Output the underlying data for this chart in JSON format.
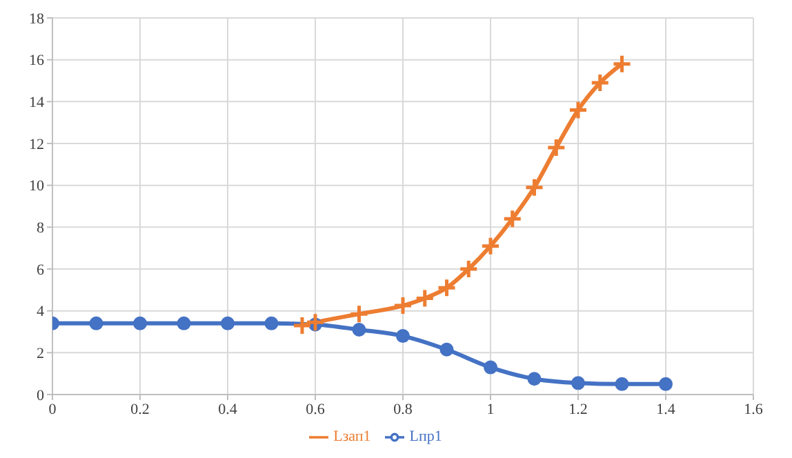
{
  "chart_data": {
    "type": "line",
    "xlim": [
      0,
      1.6
    ],
    "xticks": [
      0,
      0.2,
      0.4,
      0.6,
      0.8,
      1,
      1.2,
      1.4,
      1.6
    ],
    "ylim": [
      0,
      18
    ],
    "yticks": [
      0,
      2,
      4,
      6,
      8,
      10,
      12,
      14,
      16,
      18
    ],
    "grid": true,
    "legend": "bottom",
    "line_style": "solid",
    "series": [
      {
        "name": "Lпр1",
        "color": "#4472c4",
        "marker": "circle",
        "x": [
          0,
          0.1,
          0.2,
          0.3,
          0.4,
          0.5,
          0.6,
          0.7,
          0.8,
          0.9,
          1,
          1.1,
          1.2,
          1.3,
          1.4
        ],
        "values": [
          3.4,
          3.4,
          3.4,
          3.4,
          3.4,
          3.4,
          3.35,
          3.1,
          2.8,
          2.15,
          1.3,
          0.75,
          0.55,
          0.5,
          0.5
        ]
      },
      {
        "name": "Lзап1",
        "color": "#ed7d31",
        "marker": "cross",
        "x": [
          0.57,
          0.6,
          0.7,
          0.8,
          0.85,
          0.9,
          0.95,
          1,
          1.05,
          1.1,
          1.15,
          1.2,
          1.25,
          1.3
        ],
        "values": [
          3.3,
          3.45,
          3.85,
          4.25,
          4.6,
          5.1,
          6,
          7.1,
          8.4,
          9.9,
          11.8,
          13.6,
          14.9,
          15.8
        ]
      }
    ]
  }
}
